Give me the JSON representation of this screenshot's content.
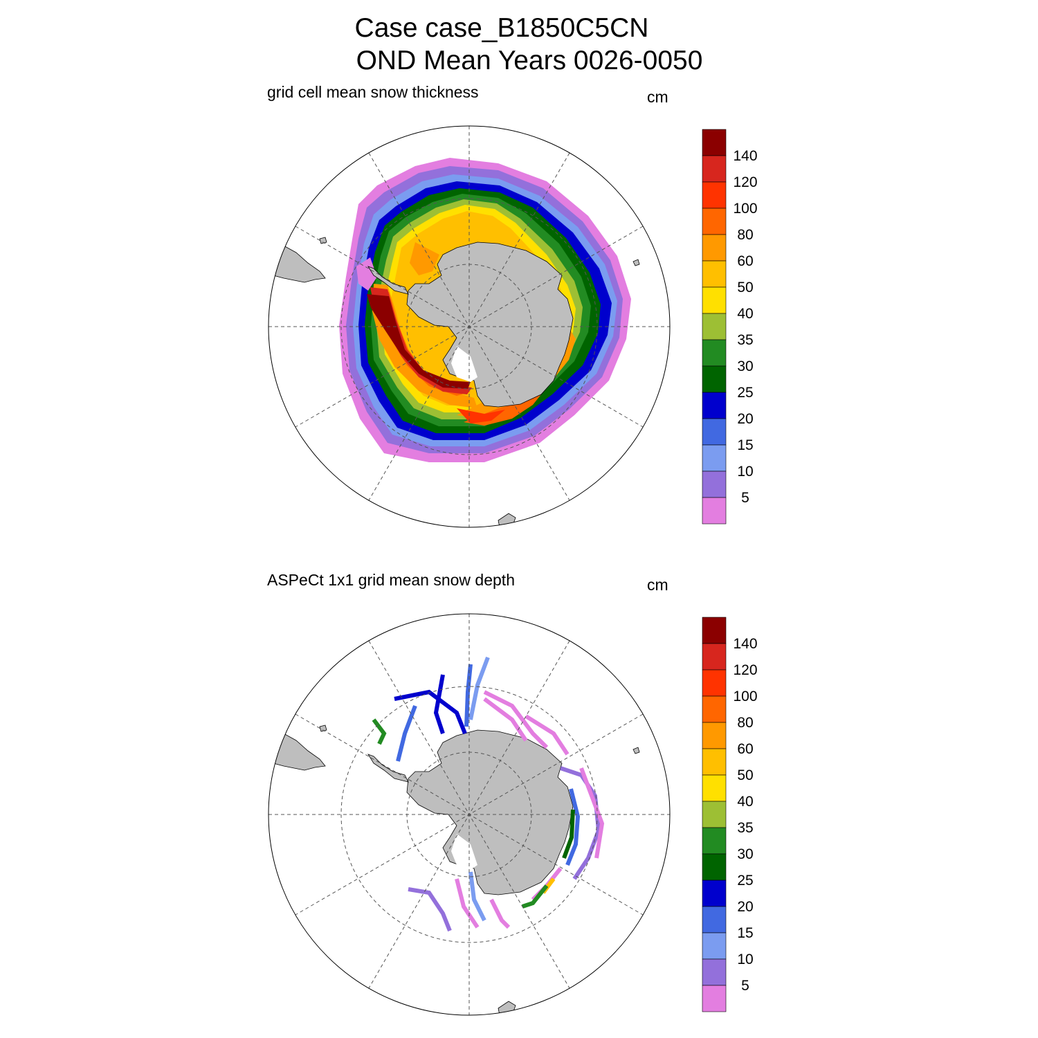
{
  "title": {
    "line1": "Case case_B1850C5CN",
    "line2": "OND Mean   Years 0026-0050"
  },
  "panels": [
    {
      "id": "model",
      "subtitle": "grid cell mean snow thickness",
      "units": "cm"
    },
    {
      "id": "obs",
      "subtitle": "ASPeCt 1x1 grid mean snow depth",
      "units": "cm"
    }
  ],
  "colorbar": {
    "labels": [
      "140",
      "120",
      "100",
      "80",
      "60",
      "50",
      "40",
      "35",
      "30",
      "25",
      "20",
      "15",
      "10",
      "5"
    ],
    "colors": [
      "#8b0000",
      "#d7261e",
      "#ff3300",
      "#ff6600",
      "#ff9900",
      "#ffbf00",
      "#ffe000",
      "#9dbf34",
      "#228b22",
      "#006400",
      "#0000cd",
      "#4169e1",
      "#7b9cf0",
      "#9370db",
      "#e37ee0"
    ]
  },
  "chart_data": [
    {
      "type": "heatmap",
      "projection": "south-polar-stereographic",
      "title": "grid cell mean snow thickness",
      "units": "cm",
      "levels": [
        5,
        10,
        15,
        20,
        25,
        30,
        35,
        40,
        50,
        60,
        80,
        100,
        120,
        140
      ],
      "pattern": "continuous ring of sea ice around Antarctica; thickest (>140 cm) in the Bellingshausen/Amundsen Sea sector, 40-60 cm in the Weddell Sea, 60-100 cm in the Ross Sea, thin (<15 cm) at the ice edge"
    },
    {
      "type": "heatmap",
      "projection": "south-polar-stereographic",
      "title": "ASPeCt 1x1 grid mean snow depth",
      "units": "cm",
      "levels": [
        5,
        10,
        15,
        20,
        25,
        30,
        35,
        40,
        50,
        60,
        80,
        100,
        120,
        140
      ],
      "pattern": "sparse ship-track observations, mostly 5-25 cm, scattered higher values near East Antarctic coast"
    }
  ]
}
